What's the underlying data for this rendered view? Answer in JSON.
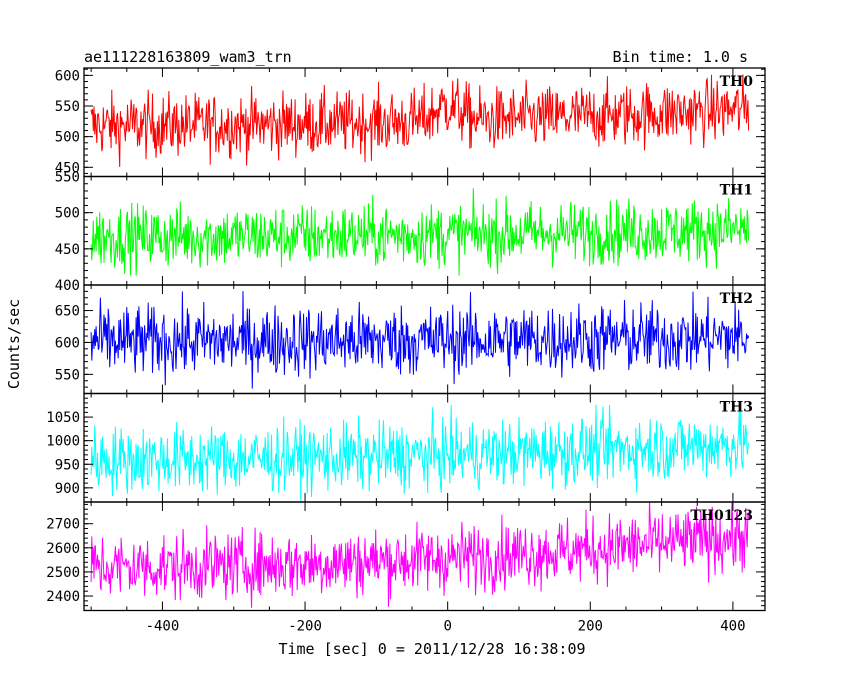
{
  "chart_data": {
    "type": "line",
    "title_left": "ae111228163809_wam3_trn",
    "title_right": "Bin time: 1.0 s",
    "xlabel": "Time [sec] 0 = 2011/12/28 16:38:09",
    "ylabel": "Counts/sec",
    "xlim": [
      -510,
      445
    ],
    "x_ticks": [
      -400,
      -200,
      0,
      200,
      400
    ],
    "x_start": -500,
    "x_end": 422,
    "panels": [
      {
        "name": "TH0",
        "color": "#ff0000",
        "ylim": [
          435,
          612
        ],
        "y_ticks": [
          450,
          500,
          550,
          600
        ],
        "mean_start": 518,
        "mean_end": 545,
        "noise": 26,
        "bump_at": 0,
        "bump_height": 25,
        "bump_width": 25
      },
      {
        "name": "TH1",
        "color": "#00ff00",
        "ylim": [
          400,
          550
        ],
        "y_ticks": [
          400,
          450,
          500,
          550
        ],
        "mean_start": 467,
        "mean_end": 477,
        "noise": 22,
        "bump_at": null,
        "bump_height": 0,
        "bump_width": 1
      },
      {
        "name": "TH2",
        "color": "#0000ff",
        "ylim": [
          520,
          690
        ],
        "y_ticks": [
          550,
          600,
          650
        ],
        "mean_start": 602,
        "mean_end": 608,
        "noise": 28,
        "bump_at": null,
        "bump_height": 0,
        "bump_width": 1
      },
      {
        "name": "TH3",
        "color": "#00ffff",
        "ylim": [
          870,
          1100
        ],
        "y_ticks": [
          900,
          950,
          1000,
          1050
        ],
        "mean_start": 960,
        "mean_end": 995,
        "noise": 36,
        "bump_at": null,
        "bump_height": 0,
        "bump_width": 1
      },
      {
        "name": "TH0123",
        "color": "#ff00ff",
        "ylim": [
          2340,
          2790
        ],
        "y_ticks": [
          2400,
          2500,
          2600,
          2700
        ],
        "mean_start": 2520,
        "mean_end": 2650,
        "noise": 70,
        "bump_at": null,
        "bump_height": 0,
        "bump_width": 1
      }
    ]
  }
}
